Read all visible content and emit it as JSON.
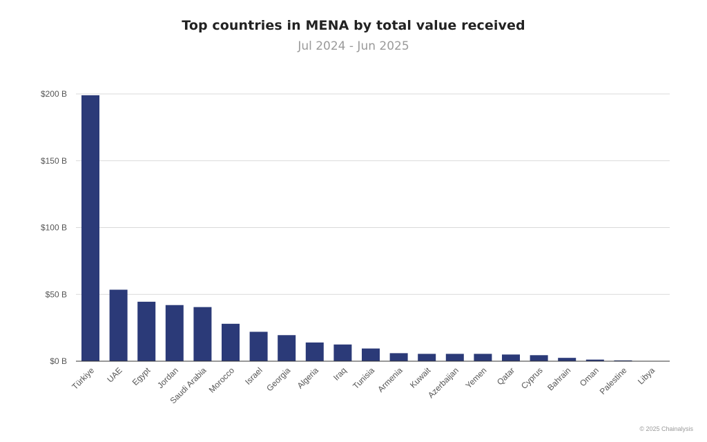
{
  "chart_data": {
    "type": "bar",
    "title": "Top countries in MENA by total value received",
    "subtitle": "Jul 2024 - Jun 2025",
    "xlabel": "",
    "ylabel": "",
    "ylim": [
      0,
      200
    ],
    "yticks": [
      {
        "value": 0,
        "label": "$0 B"
      },
      {
        "value": 50,
        "label": "$50 B"
      },
      {
        "value": 100,
        "label": "$100 B"
      },
      {
        "value": 150,
        "label": "$150 B"
      },
      {
        "value": 200,
        "label": "$200 B"
      }
    ],
    "categories": [
      "Türkiye",
      "UAE",
      "Egypt",
      "Jordan",
      "Saudi Arabia",
      "Morocco",
      "Israel",
      "Georgia",
      "Algeria",
      "Iraq",
      "Tunisia",
      "Armenia",
      "Kuwait",
      "Azerbaijan",
      "Yemen",
      "Qatar",
      "Cyprus",
      "Bahrain",
      "Oman",
      "Palestine",
      "Libya"
    ],
    "values": [
      199,
      53.5,
      44.5,
      42,
      40.5,
      28,
      22,
      19.5,
      14,
      12.5,
      9.5,
      6,
      5.5,
      5.5,
      5.5,
      5,
      4.5,
      2.5,
      1.2,
      0.6,
      0.1
    ],
    "grid": true,
    "bar_color": "#2b3a78"
  },
  "credit": "© 2025 Chainalysis"
}
